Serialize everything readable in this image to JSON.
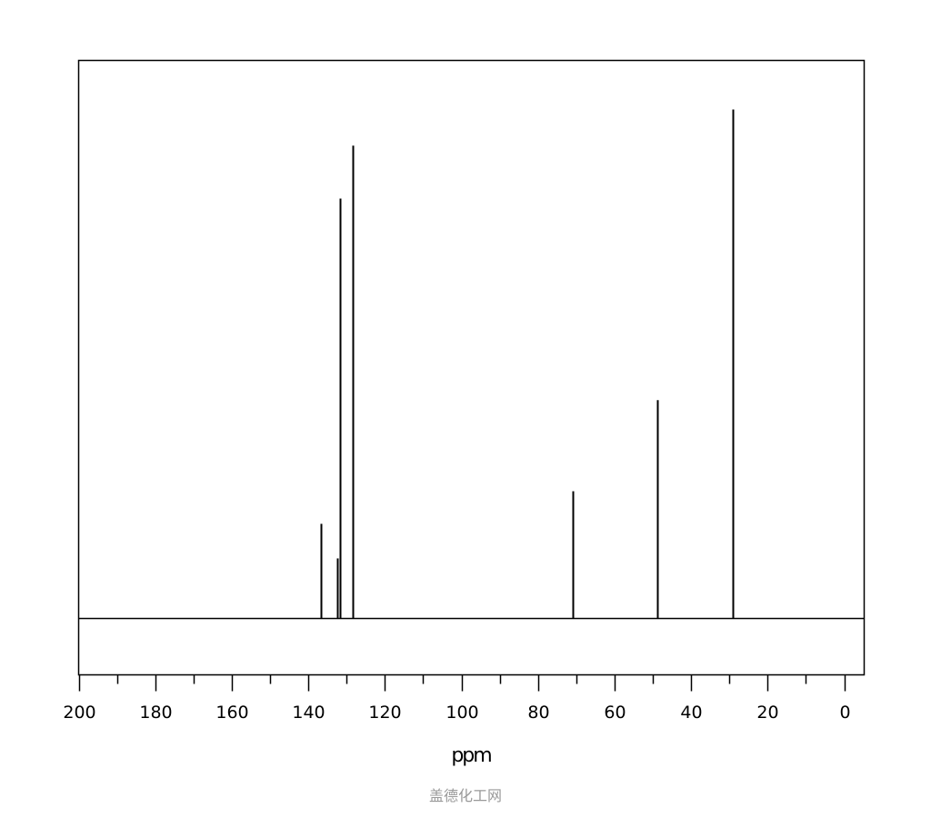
{
  "chart_data": {
    "type": "bar",
    "title": "",
    "xlabel": "ppm",
    "ylabel": "",
    "xlim": [
      200,
      -5
    ],
    "x_reversed": true,
    "ylim": [
      0,
      100
    ],
    "grid": false,
    "x_ticks_major": [
      200,
      180,
      160,
      140,
      120,
      100,
      80,
      60,
      40,
      20,
      0
    ],
    "x_ticks_minor": [
      190,
      170,
      150,
      130,
      110,
      90,
      70,
      50,
      30,
      10
    ],
    "tick_labels": [
      "200",
      "180",
      "160",
      "140",
      "120",
      "100",
      "80",
      "60",
      "40",
      "20",
      "0"
    ],
    "peaks": [
      {
        "ppm": 136.6,
        "intensity": 18.6
      },
      {
        "ppm": 132.5,
        "intensity": 11.8
      },
      {
        "ppm": 131.6,
        "intensity": 82.5
      },
      {
        "ppm": 128.3,
        "intensity": 92.9
      },
      {
        "ppm": 70.8,
        "intensity": 25.0
      },
      {
        "ppm": 48.9,
        "intensity": 42.9
      },
      {
        "ppm": 29.2,
        "intensity": 100
      }
    ],
    "line_color": "#000000"
  },
  "watermark": "盖德化工网"
}
